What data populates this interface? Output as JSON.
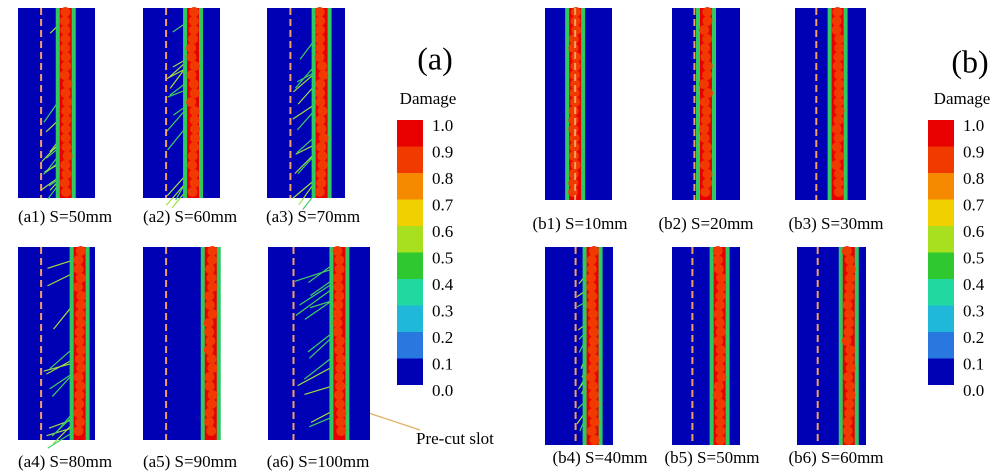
{
  "panel_a": {
    "label": "(a)",
    "captions": [
      "(a1) S=50mm",
      "(a2) S=60mm",
      "(a3) S=70mm",
      "(a4) S=80mm",
      "(a5) S=90mm",
      "(a6) S=100mm"
    ],
    "colorbar": {
      "title": "Damage",
      "ticks": [
        "1.0",
        "0.9",
        "0.8",
        "0.7",
        "0.6",
        "0.5",
        "0.4",
        "0.3",
        "0.2",
        "0.1",
        "0.0"
      ]
    },
    "annotation": "Pre-cut slot"
  },
  "panel_b": {
    "label": "(b)",
    "captions": [
      "(b1) S=10mm",
      "(b2) S=20mm",
      "(b3) S=30mm",
      "(b4) S=40mm",
      "(b5) S=50mm",
      "(b6) S=60mm"
    ],
    "colorbar": {
      "title": "Damage",
      "ticks": [
        "1.0",
        "0.9",
        "0.8",
        "0.7",
        "0.6",
        "0.5",
        "0.4",
        "0.3",
        "0.2",
        "0.1",
        "0.0"
      ]
    }
  }
}
